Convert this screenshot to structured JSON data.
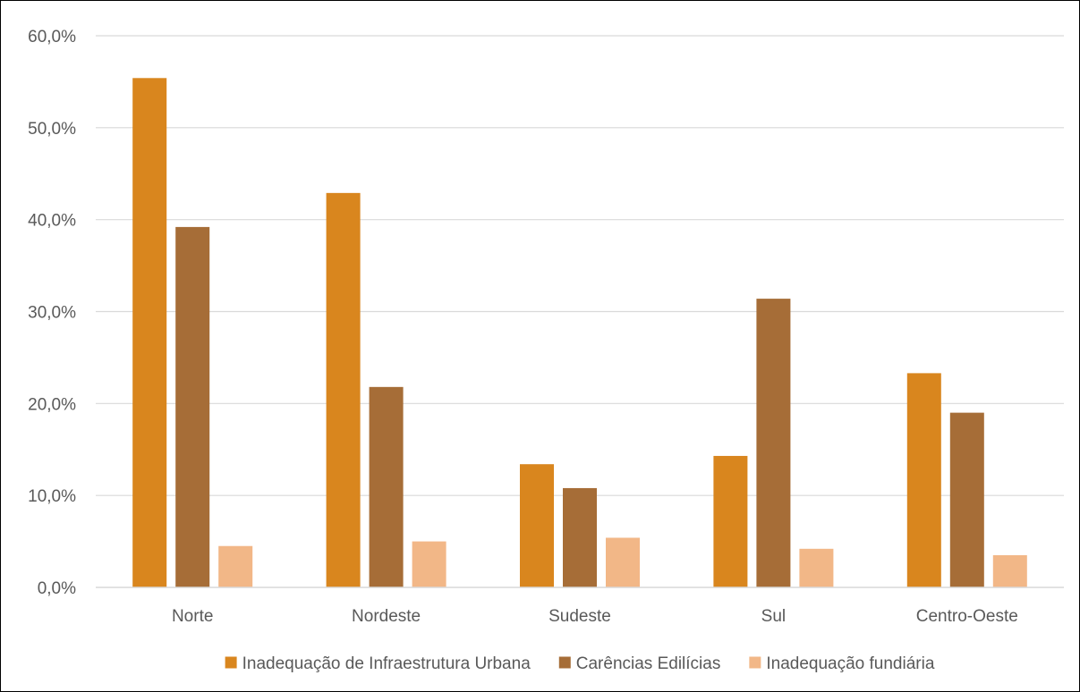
{
  "chart_data": {
    "type": "bar",
    "categories": [
      "Norte",
      "Nordeste",
      "Sudeste",
      "Sul",
      "Centro-Oeste"
    ],
    "series": [
      {
        "name": "Inadequação de Infraestrutura Urbana",
        "color": "#D9861E",
        "values": [
          55.4,
          42.9,
          13.4,
          14.3,
          23.3
        ]
      },
      {
        "name": "Carências Edilícias",
        "color": "#A66D37",
        "values": [
          39.2,
          21.8,
          10.8,
          31.4,
          19.0
        ]
      },
      {
        "name": "Inadequação fundiária",
        "color": "#F2B787",
        "values": [
          4.5,
          5.0,
          5.4,
          4.2,
          3.5
        ]
      }
    ],
    "ylim": [
      0,
      60
    ],
    "yticks": [
      0,
      10,
      20,
      30,
      40,
      50,
      60
    ],
    "ytick_labels": [
      "0,0%",
      "10,0%",
      "20,0%",
      "30,0%",
      "40,0%",
      "50,0%",
      "60,0%"
    ],
    "grid": true,
    "legend_position": "bottom"
  }
}
